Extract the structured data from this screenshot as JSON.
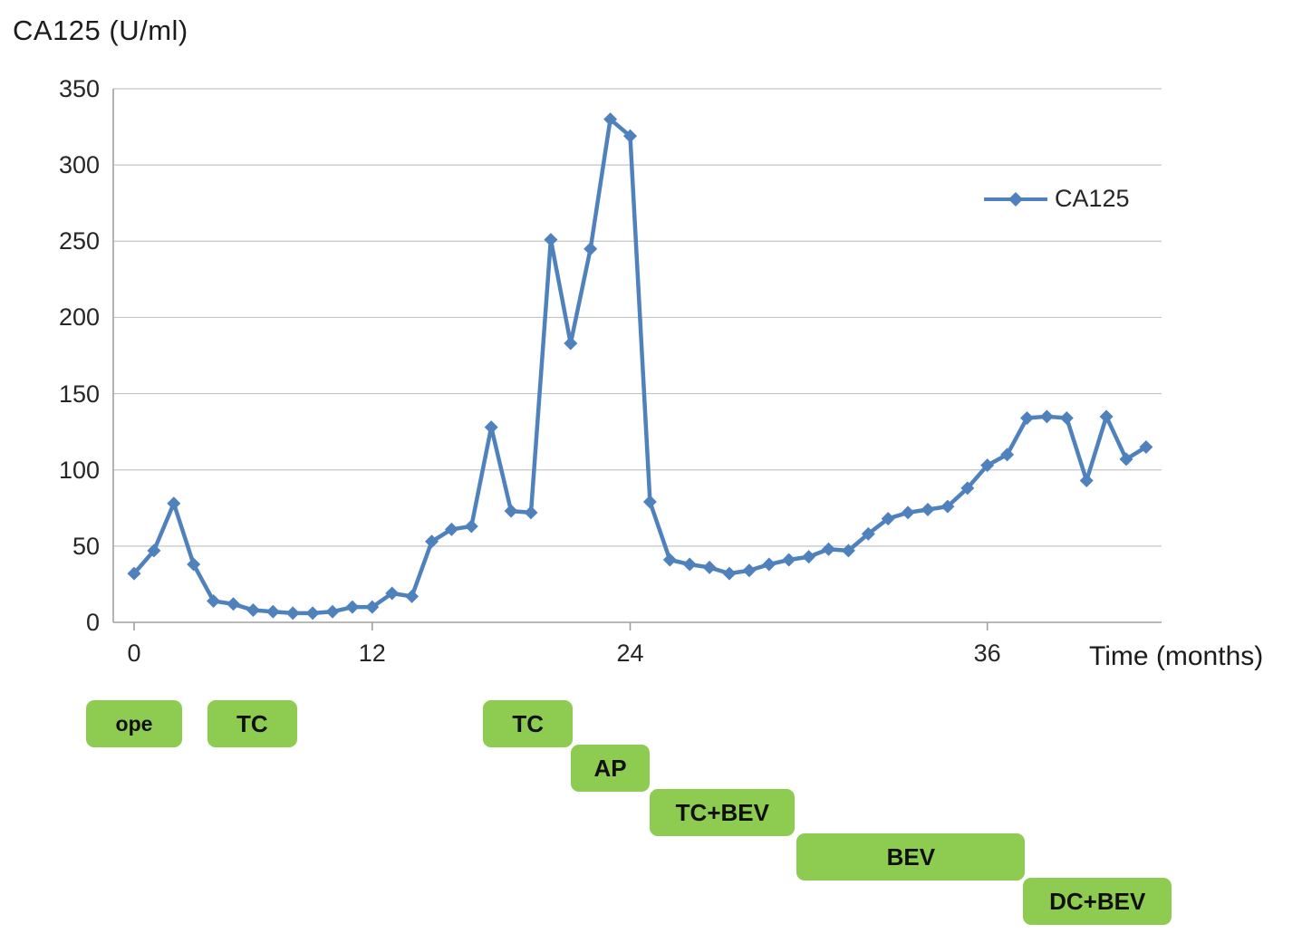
{
  "chart_data": {
    "type": "line",
    "title": "CA125 (U/ml)",
    "xlabel": "Time (months)",
    "ylabel": "CA125 (U/ml)",
    "ylim": [
      0,
      350
    ],
    "ytick_step": 50,
    "ytick_labels": [
      "350",
      "300",
      "250",
      "200",
      "150",
      "100",
      "50",
      "0"
    ],
    "xtick_labels": [
      "0",
      "12",
      "24",
      "36"
    ],
    "xtick_indices": [
      0,
      12,
      25,
      43
    ],
    "grid": "horizontal-only",
    "legend": {
      "label": "CA125",
      "position": "upper-right"
    },
    "colors": {
      "line": "#4f81bd",
      "gridline": "#c4c4c4",
      "axis": "#a0a0a0",
      "treatment_bar": "#8ecb51",
      "text": "#262626"
    },
    "marker": "diamond",
    "series": [
      {
        "name": "CA125",
        "color": "#4f81bd",
        "values": [
          32,
          47,
          78,
          38,
          14,
          12,
          8,
          7,
          6,
          6,
          7,
          10,
          10,
          19,
          17,
          53,
          61,
          63,
          128,
          73,
          72,
          251,
          183,
          245,
          330,
          319,
          79,
          41,
          38,
          36,
          32,
          34,
          38,
          41,
          43,
          48,
          47,
          58,
          68,
          72,
          74,
          76,
          88,
          103,
          110,
          134,
          135,
          134,
          93,
          135,
          107,
          115
        ]
      }
    ],
    "treatment_bars": [
      {
        "label": "ope",
        "row": 0,
        "start_index": -2.4,
        "end_index": 2.4
      },
      {
        "label": "TC",
        "row": 0,
        "start_index": 3.7,
        "end_index": 8.2
      },
      {
        "label": "TC",
        "row": 0,
        "start_index": 17.6,
        "end_index": 22.1
      },
      {
        "label": "AP",
        "row": 1,
        "start_index": 22.0,
        "end_index": 26.0
      },
      {
        "label": "TC+BEV",
        "row": 2,
        "start_index": 26.0,
        "end_index": 33.3
      },
      {
        "label": "BEV",
        "row": 3,
        "start_index": 33.4,
        "end_index": 44.9
      },
      {
        "label": "DC+BEV",
        "row": 4,
        "start_index": 44.8,
        "end_index": 52.3
      }
    ]
  }
}
